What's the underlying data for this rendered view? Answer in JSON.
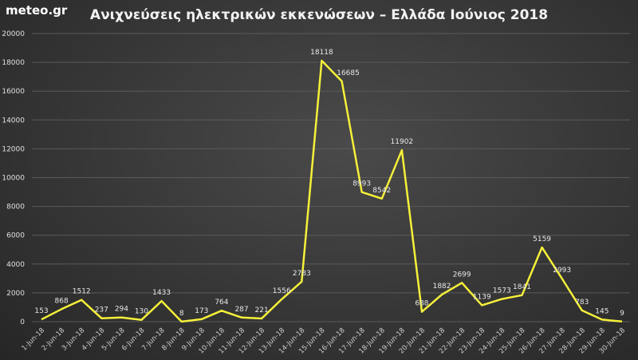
{
  "brand": "meteo.gr",
  "title": "Ανιχνεύσεις ηλεκτρικών εκκενώσεων – Ελλάδα Ιούνιος 2018",
  "colors": {
    "line": "#f5f03a",
    "background": "#3a3a3a",
    "grid": "#5a5a5a",
    "text": "#e8e8e8"
  },
  "chart_data": {
    "type": "line",
    "title": "Ανιχνεύσεις ηλεκτρικών εκκενώσεων – Ελλάδα Ιούνιος 2018",
    "xlabel": "",
    "ylabel": "",
    "ylim": [
      0,
      20000
    ],
    "yticks": [
      0,
      2000,
      4000,
      6000,
      8000,
      10000,
      12000,
      14000,
      16000,
      18000,
      20000
    ],
    "grid": true,
    "legend": false,
    "categories": [
      "1-Jun-18",
      "2-Jun-18",
      "3-Jun-18",
      "4-Jun-18",
      "5-Jun-18",
      "6-Jun-18",
      "7-Jun-18",
      "8-Jun-18",
      "9-Jun-18",
      "10-Jun-18",
      "11-Jun-18",
      "12-Jun-18",
      "13-Jun-18",
      "14-Jun-18",
      "15-Jun-18",
      "16-Jun-18",
      "17-Jun-18",
      "18-Jun-18",
      "19-Jun-18",
      "20-Jun-18",
      "21-Jun-18",
      "22-Jun-18",
      "23-Jun-18",
      "24-Jun-18",
      "25-Jun-18",
      "26-Jun-18",
      "27-Jun-18",
      "28-Jun-18",
      "29-Jun-18",
      "30-Jun-18"
    ],
    "series": [
      {
        "name": "Ανιχνεύσεις",
        "values": [
          153,
          868,
          1512,
          237,
          294,
          130,
          1433,
          8,
          173,
          764,
          287,
          221,
          1556,
          2783,
          18118,
          16685,
          8993,
          8542,
          11902,
          688,
          1882,
          2699,
          1139,
          1573,
          1841,
          5159,
          2993,
          783,
          145,
          9
        ]
      }
    ]
  }
}
